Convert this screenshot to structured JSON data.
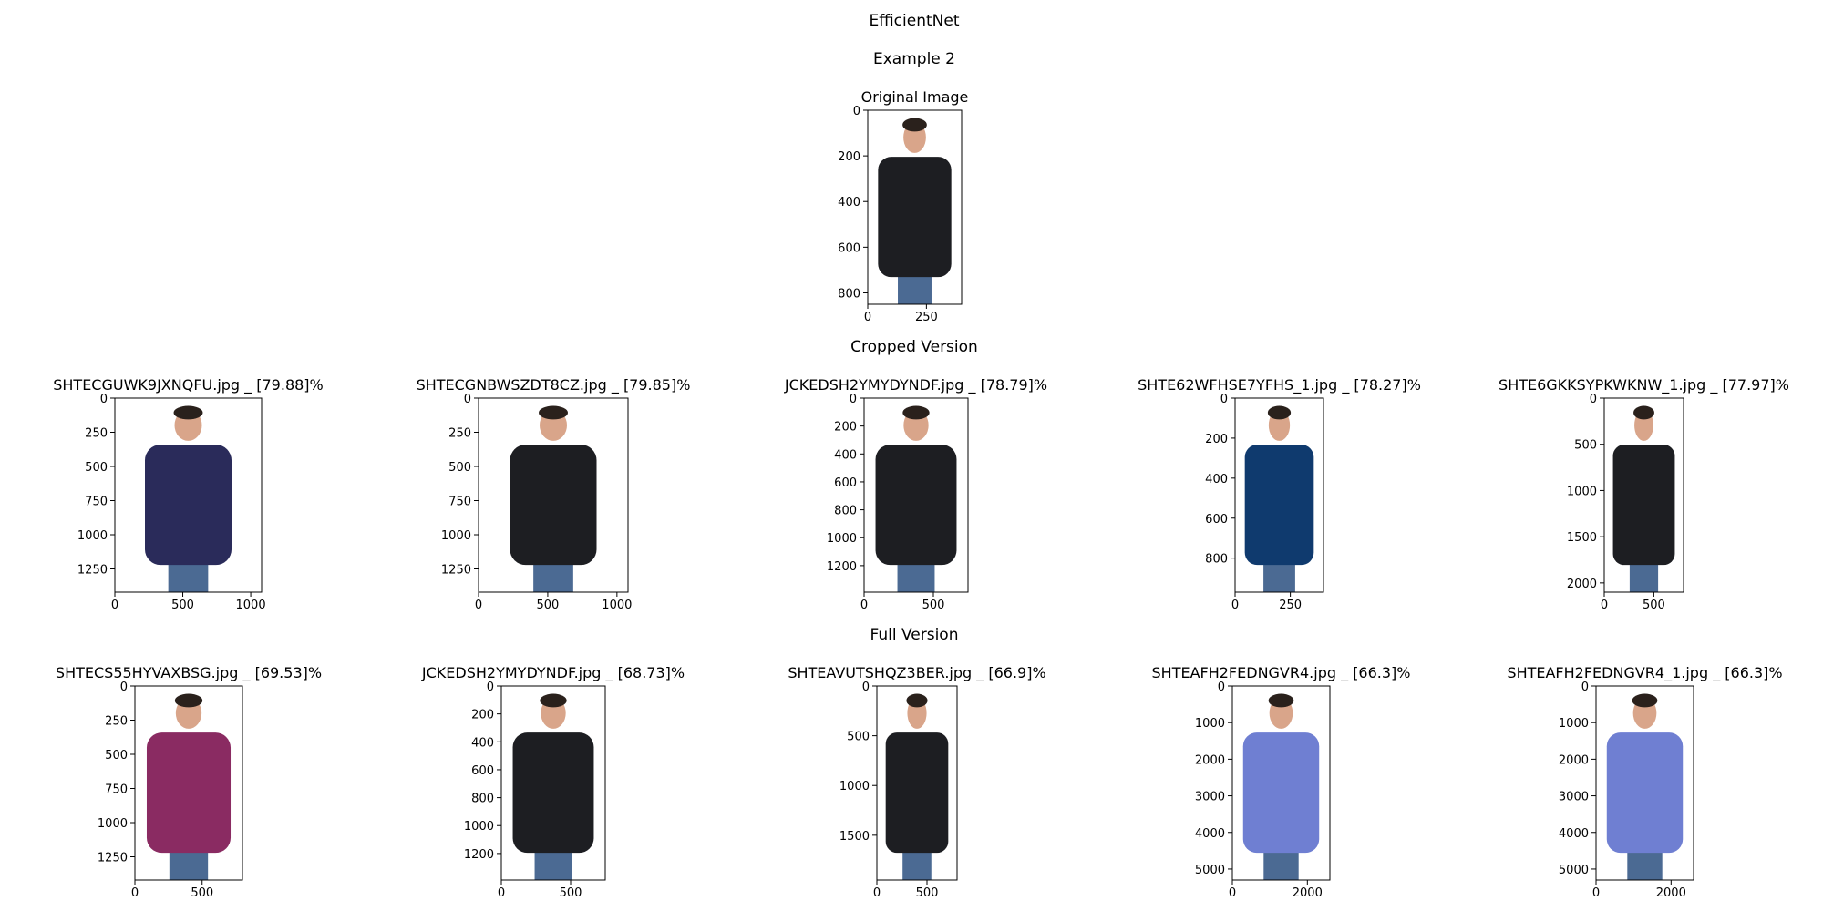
{
  "figure": {
    "title": "EfficientNet",
    "subtitle": "Example 2",
    "original_title": "Original Image",
    "cropped_title": "Cropped Version",
    "full_title": "Full Version"
  },
  "colors": {
    "background": "#ffffff",
    "axis": "#000000",
    "shirt_black": "#1d1e22",
    "shirt_navy": "#2a2b5a",
    "shirt_blue": "#0f3a6e",
    "shirt_pink": "#8a2b62",
    "shirt_light_blue": "#6f7fd2",
    "skin": "#d9a58a",
    "jeans": "#4b6a93"
  },
  "chart_data": [
    {
      "type": "image",
      "title": "Original Image",
      "xlim": [
        0,
        400
      ],
      "ylim": [
        850,
        0
      ],
      "xticks": [
        0,
        250
      ],
      "yticks": [
        0,
        200,
        400,
        600,
        800
      ],
      "image": {
        "subject": "man",
        "shirt": "black shirt",
        "icon": "person-icon"
      }
    },
    {
      "type": "image",
      "title": "SHTECGUWK9JXNQFU.jpg _ [79.88]%",
      "xlim": [
        0,
        1080
      ],
      "ylim": [
        1420,
        0
      ],
      "xticks": [
        0,
        500,
        1000
      ],
      "yticks": [
        0,
        250,
        500,
        750,
        1000,
        1250
      ],
      "image": {
        "subject": "woman",
        "shirt": "navy shirt",
        "icon": "person-icon"
      }
    },
    {
      "type": "image",
      "title": "SHTECGNBWSZDT8CZ.jpg _ [79.85]%",
      "xlim": [
        0,
        1080
      ],
      "ylim": [
        1420,
        0
      ],
      "xticks": [
        0,
        500,
        1000
      ],
      "yticks": [
        0,
        250,
        500,
        750,
        1000,
        1250
      ],
      "image": {
        "subject": "woman",
        "shirt": "black shirt",
        "icon": "person-icon"
      }
    },
    {
      "type": "image",
      "title": "JCKEDSH2YMYDYNDF.jpg _ [78.79]%",
      "xlim": [
        0,
        750
      ],
      "ylim": [
        1390,
        0
      ],
      "xticks": [
        0,
        500
      ],
      "yticks": [
        0,
        200,
        400,
        600,
        800,
        1000,
        1200
      ],
      "image": {
        "subject": "man",
        "shirt": "black jacket",
        "icon": "person-icon"
      }
    },
    {
      "type": "image",
      "title": "SHTE62WFHSE7YFHS_1.jpg _ [78.27]%",
      "xlim": [
        0,
        400
      ],
      "ylim": [
        970,
        0
      ],
      "xticks": [
        0,
        250
      ],
      "yticks": [
        0,
        200,
        400,
        600,
        800
      ],
      "image": {
        "subject": "man",
        "shirt": "blue shirt",
        "icon": "person-icon"
      }
    },
    {
      "type": "image",
      "title": "SHTE6GKKSYPKWKNW_1.jpg _ [77.97]%",
      "xlim": [
        0,
        800
      ],
      "ylim": [
        2100,
        0
      ],
      "xticks": [
        0,
        500
      ],
      "yticks": [
        0,
        500,
        1000,
        1500,
        2000
      ],
      "image": {
        "subject": "woman",
        "shirt": "black shirt",
        "icon": "person-icon"
      }
    },
    {
      "type": "image",
      "title": "SHTECS55HYVAXBSG.jpg _ [69.53]%",
      "xlim": [
        0,
        800
      ],
      "ylim": [
        1420,
        0
      ],
      "xticks": [
        0,
        500
      ],
      "yticks": [
        0,
        250,
        500,
        750,
        1000,
        1250
      ],
      "image": {
        "subject": "man",
        "shirt": "pink and grey shirt",
        "icon": "person-icon"
      }
    },
    {
      "type": "image",
      "title": "JCKEDSH2YMYDYNDF.jpg _ [68.73]%",
      "xlim": [
        0,
        750
      ],
      "ylim": [
        1390,
        0
      ],
      "xticks": [
        0,
        500
      ],
      "yticks": [
        0,
        200,
        400,
        600,
        800,
        1000,
        1200
      ],
      "image": {
        "subject": "man",
        "shirt": "black jacket",
        "icon": "person-icon"
      }
    },
    {
      "type": "image",
      "title": "SHTEAVUTSHQZ3BER.jpg _ [66.9]%",
      "xlim": [
        0,
        800
      ],
      "ylim": [
        1950,
        0
      ],
      "xticks": [
        0,
        500
      ],
      "yticks": [
        0,
        500,
        1000,
        1500
      ],
      "image": {
        "subject": "woman",
        "shirt": "black shirt",
        "icon": "person-icon"
      }
    },
    {
      "type": "image",
      "title": "SHTEAFH2FEDNGVR4.jpg _ [66.3]%",
      "xlim": [
        0,
        2600
      ],
      "ylim": [
        5300,
        0
      ],
      "xticks": [
        0,
        2000
      ],
      "yticks": [
        0,
        1000,
        2000,
        3000,
        4000,
        5000
      ],
      "image": {
        "subject": "man",
        "shirt": "light blue shirt",
        "icon": "person-icon"
      }
    },
    {
      "type": "image",
      "title": "SHTEAFH2FEDNGVR4_1.jpg _ [66.3]%",
      "xlim": [
        0,
        2600
      ],
      "ylim": [
        5300,
        0
      ],
      "xticks": [
        0,
        2000
      ],
      "yticks": [
        0,
        1000,
        2000,
        3000,
        4000,
        5000
      ],
      "image": {
        "subject": "man",
        "shirt": "light blue shirt",
        "icon": "person-icon"
      }
    }
  ]
}
